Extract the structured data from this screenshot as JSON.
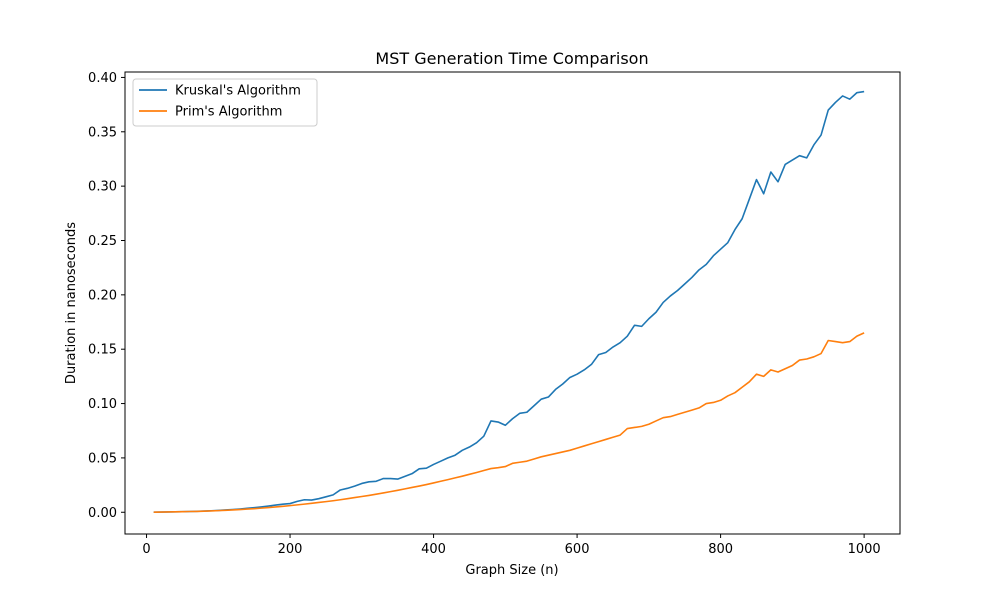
{
  "chart_data": {
    "type": "line",
    "title": "MST Generation Time Comparison",
    "xlabel": "Graph Size (n)",
    "ylabel": "Duration in nanoseconds",
    "xlim": [
      -30,
      1050
    ],
    "ylim": [
      -0.02,
      0.405
    ],
    "x_ticks": [
      0,
      200,
      400,
      600,
      800,
      1000
    ],
    "y_ticks": [
      0.0,
      0.05,
      0.1,
      0.15,
      0.2,
      0.25,
      0.3,
      0.35,
      0.4
    ],
    "x_tick_labels": [
      "0",
      "200",
      "400",
      "600",
      "800",
      "1000"
    ],
    "y_tick_labels": [
      "0.00",
      "0.05",
      "0.10",
      "0.15",
      "0.20",
      "0.25",
      "0.30",
      "0.35",
      "0.40"
    ],
    "grid": false,
    "legend_position": "top-left",
    "x": [
      10,
      20,
      30,
      40,
      50,
      60,
      70,
      80,
      90,
      100,
      110,
      120,
      130,
      140,
      150,
      160,
      170,
      180,
      190,
      200,
      210,
      220,
      230,
      240,
      250,
      260,
      270,
      280,
      290,
      300,
      310,
      320,
      330,
      340,
      350,
      360,
      370,
      380,
      390,
      400,
      410,
      420,
      430,
      440,
      450,
      460,
      470,
      480,
      490,
      500,
      510,
      520,
      530,
      540,
      550,
      560,
      570,
      580,
      590,
      600,
      610,
      620,
      630,
      640,
      650,
      660,
      670,
      680,
      690,
      700,
      710,
      720,
      730,
      740,
      750,
      760,
      770,
      780,
      790,
      800,
      810,
      820,
      830,
      840,
      850,
      860,
      870,
      880,
      890,
      900,
      910,
      920,
      930,
      940,
      950,
      960,
      970,
      980,
      990,
      1000
    ],
    "series": [
      {
        "name": "Kruskal's Algorithm",
        "color": "#1f77b4",
        "values": [
          0.0001,
          0.0002,
          0.0003,
          0.0004,
          0.0005,
          0.0007,
          0.0009,
          0.0011,
          0.0014,
          0.0017,
          0.0021,
          0.0025,
          0.003,
          0.0036,
          0.0042,
          0.0049,
          0.0057,
          0.0066,
          0.0074,
          0.008,
          0.01,
          0.0115,
          0.0112,
          0.0125,
          0.0142,
          0.016,
          0.0205,
          0.022,
          0.024,
          0.0265,
          0.028,
          0.0285,
          0.031,
          0.031,
          0.0305,
          0.033,
          0.0355,
          0.04,
          0.0405,
          0.044,
          0.047,
          0.05,
          0.0525,
          0.057,
          0.06,
          0.064,
          0.07,
          0.084,
          0.083,
          0.08,
          0.086,
          0.091,
          0.092,
          0.098,
          0.104,
          0.106,
          0.113,
          0.118,
          0.124,
          0.127,
          0.131,
          0.136,
          0.145,
          0.147,
          0.152,
          0.156,
          0.162,
          0.172,
          0.171,
          0.178,
          0.184,
          0.193,
          0.199,
          0.204,
          0.21,
          0.216,
          0.223,
          0.228,
          0.236,
          0.242,
          0.248,
          0.26,
          0.27,
          0.288,
          0.306,
          0.293,
          0.313,
          0.304,
          0.32,
          0.324,
          0.328,
          0.326,
          0.338,
          0.347,
          0.37,
          0.377,
          0.383,
          0.38,
          0.386,
          0.387
        ]
      },
      {
        "name": "Prim's Algorithm",
        "color": "#ff7f0e",
        "values": [
          0.0001,
          0.0002,
          0.0003,
          0.0004,
          0.0005,
          0.0007,
          0.0008,
          0.001,
          0.0012,
          0.0015,
          0.0018,
          0.0021,
          0.0025,
          0.0029,
          0.0033,
          0.0038,
          0.0043,
          0.0049,
          0.0055,
          0.0061,
          0.0068,
          0.0075,
          0.0082,
          0.009,
          0.0098,
          0.0106,
          0.0115,
          0.0125,
          0.0135,
          0.0145,
          0.0155,
          0.0166,
          0.0178,
          0.019,
          0.0202,
          0.0215,
          0.0228,
          0.0241,
          0.0255,
          0.027,
          0.0285,
          0.03,
          0.0316,
          0.0332,
          0.0349,
          0.0366,
          0.0384,
          0.0402,
          0.041,
          0.042,
          0.045,
          0.046,
          0.047,
          0.049,
          0.051,
          0.0525,
          0.054,
          0.0555,
          0.057,
          0.059,
          0.061,
          0.063,
          0.065,
          0.067,
          0.069,
          0.071,
          0.077,
          0.078,
          0.079,
          0.081,
          0.084,
          0.087,
          0.088,
          0.09,
          0.092,
          0.094,
          0.096,
          0.1,
          0.101,
          0.103,
          0.107,
          0.11,
          0.115,
          0.12,
          0.127,
          0.125,
          0.131,
          0.129,
          0.132,
          0.135,
          0.14,
          0.141,
          0.143,
          0.146,
          0.158,
          0.157,
          0.156,
          0.157,
          0.162,
          0.165
        ]
      }
    ]
  }
}
